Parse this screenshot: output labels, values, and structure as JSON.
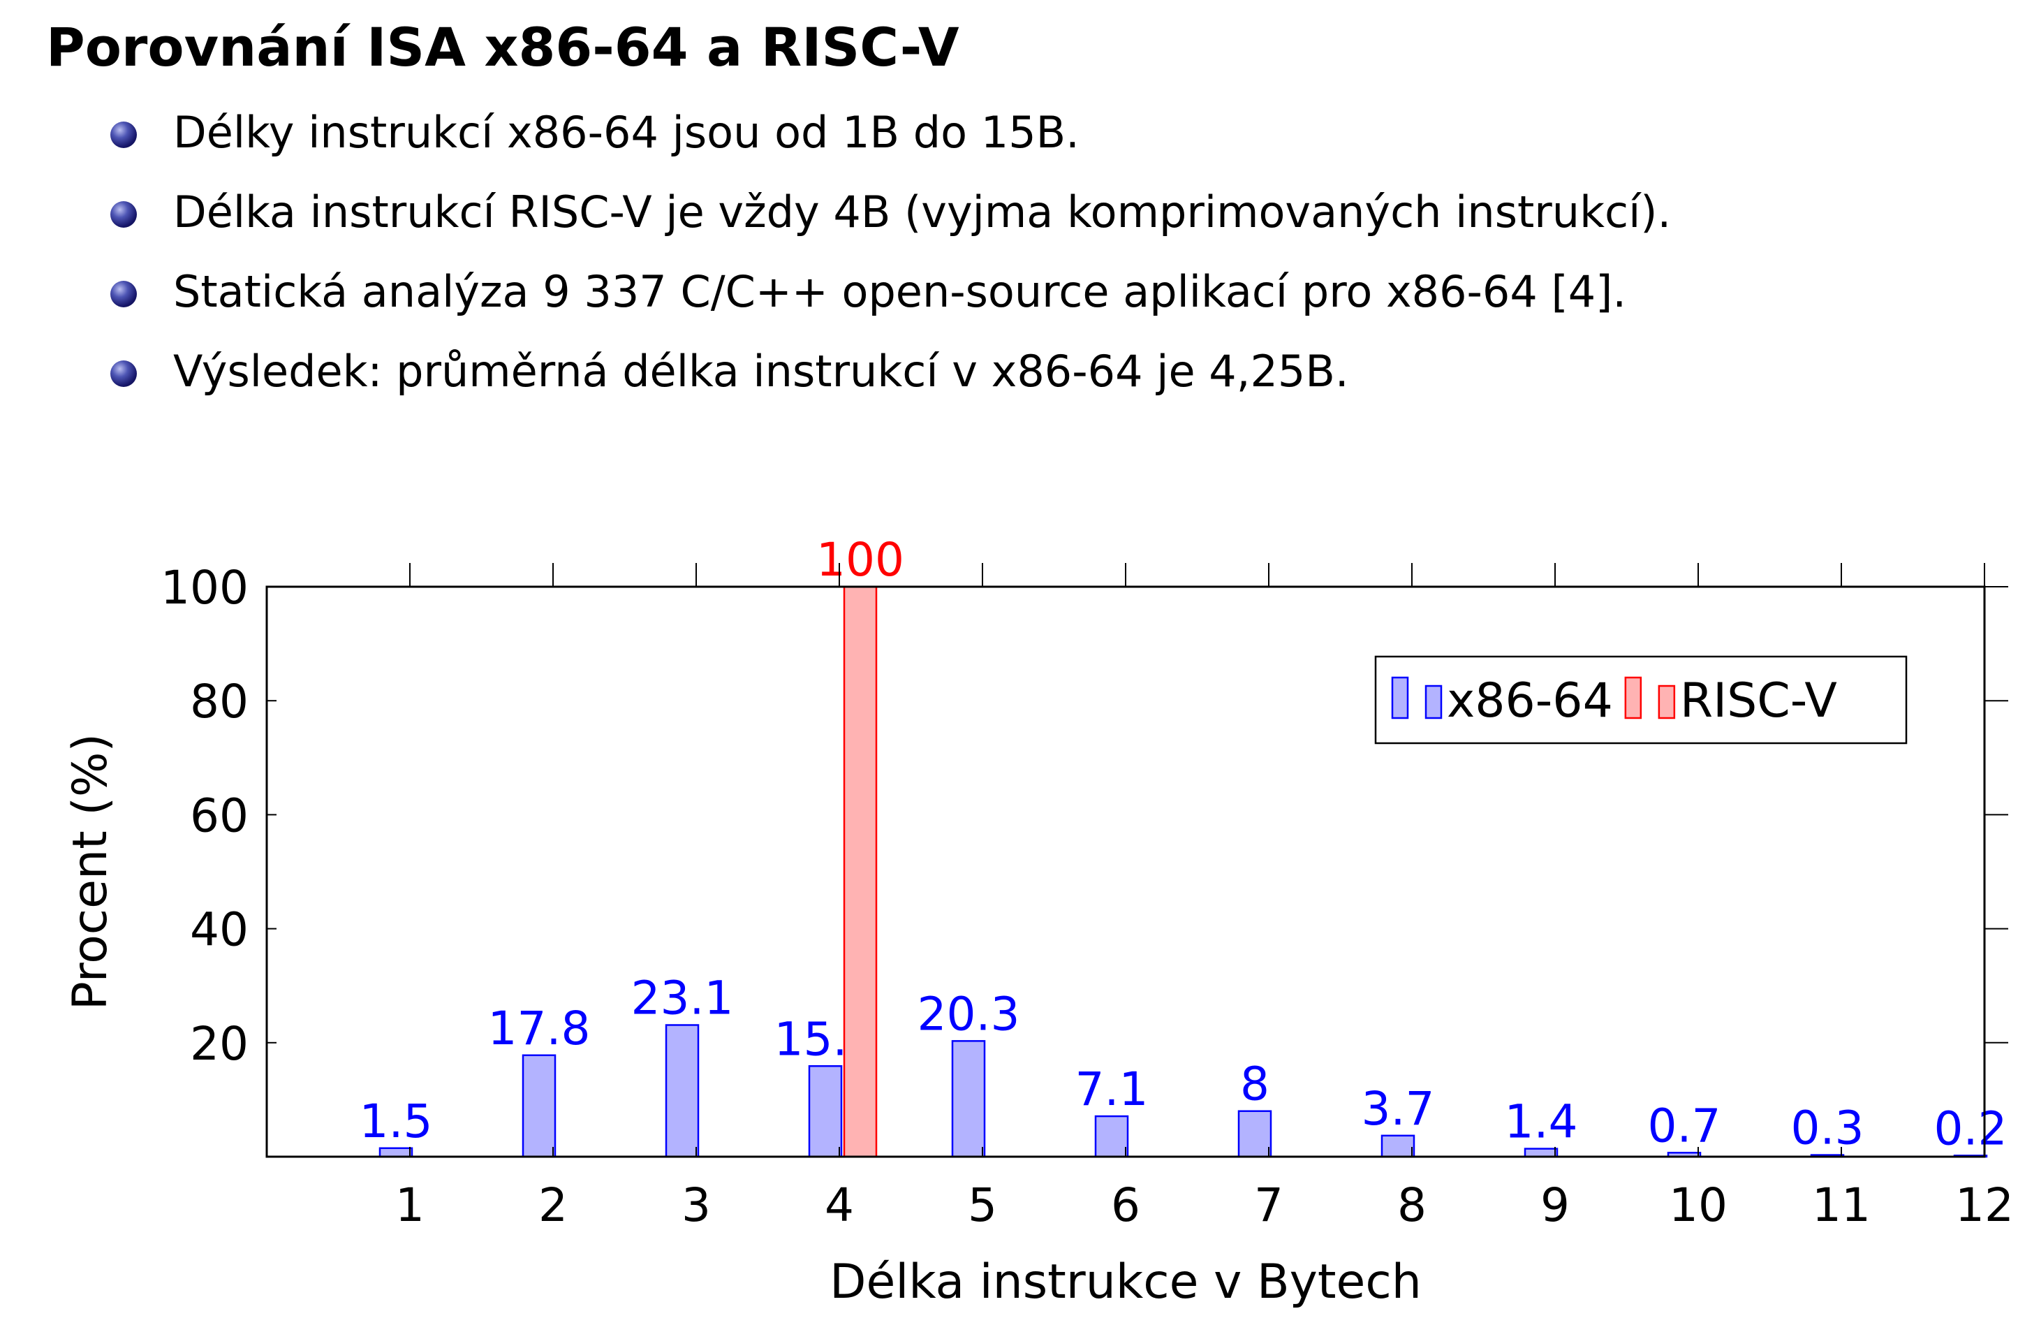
{
  "slide": {
    "title": "Porovnání ISA x86-64 a RISC-V",
    "bullets": [
      "Délky instrukcí x86-64 jsou od 1B do 15B.",
      "Délka instrukcí RISC-V je vždy 4B (vyjma komprimovaných instrukcí).",
      "Statická analýza 9 337 C/C++ open-source aplikací pro x86-64 [4].",
      "Výsledek: průměrná délka instrukcí v x86-64 je 4,25B."
    ],
    "bullet_icon": "sphere-bullet-icon"
  },
  "chart_data": {
    "type": "bar",
    "title": "",
    "xlabel": "Délka instrukce v Bytech",
    "ylabel": "Procent (%)",
    "xlim": [
      0,
      12
    ],
    "ylim": [
      0,
      100
    ],
    "x_ticks": [
      1,
      2,
      3,
      4,
      5,
      6,
      7,
      8,
      9,
      10,
      11,
      12
    ],
    "y_ticks": [
      20,
      40,
      60,
      80,
      100
    ],
    "grid": false,
    "legend": {
      "position": "top-right",
      "columns": 2
    },
    "series": [
      {
        "name": "x86-64",
        "color": "#0000ff",
        "fill": "#b3b3ff",
        "x": [
          1,
          2,
          3,
          4,
          5,
          6,
          7,
          8,
          9,
          10,
          11,
          12
        ],
        "values": [
          1.5,
          17.8,
          23.1,
          15.9,
          20.3,
          7.1,
          8,
          3.7,
          1.4,
          0.7,
          0.3,
          0.2
        ]
      },
      {
        "name": "RISC-V",
        "color": "#ff0000",
        "fill": "#ffb3b3",
        "x": [
          4
        ],
        "values": [
          100
        ]
      }
    ]
  }
}
